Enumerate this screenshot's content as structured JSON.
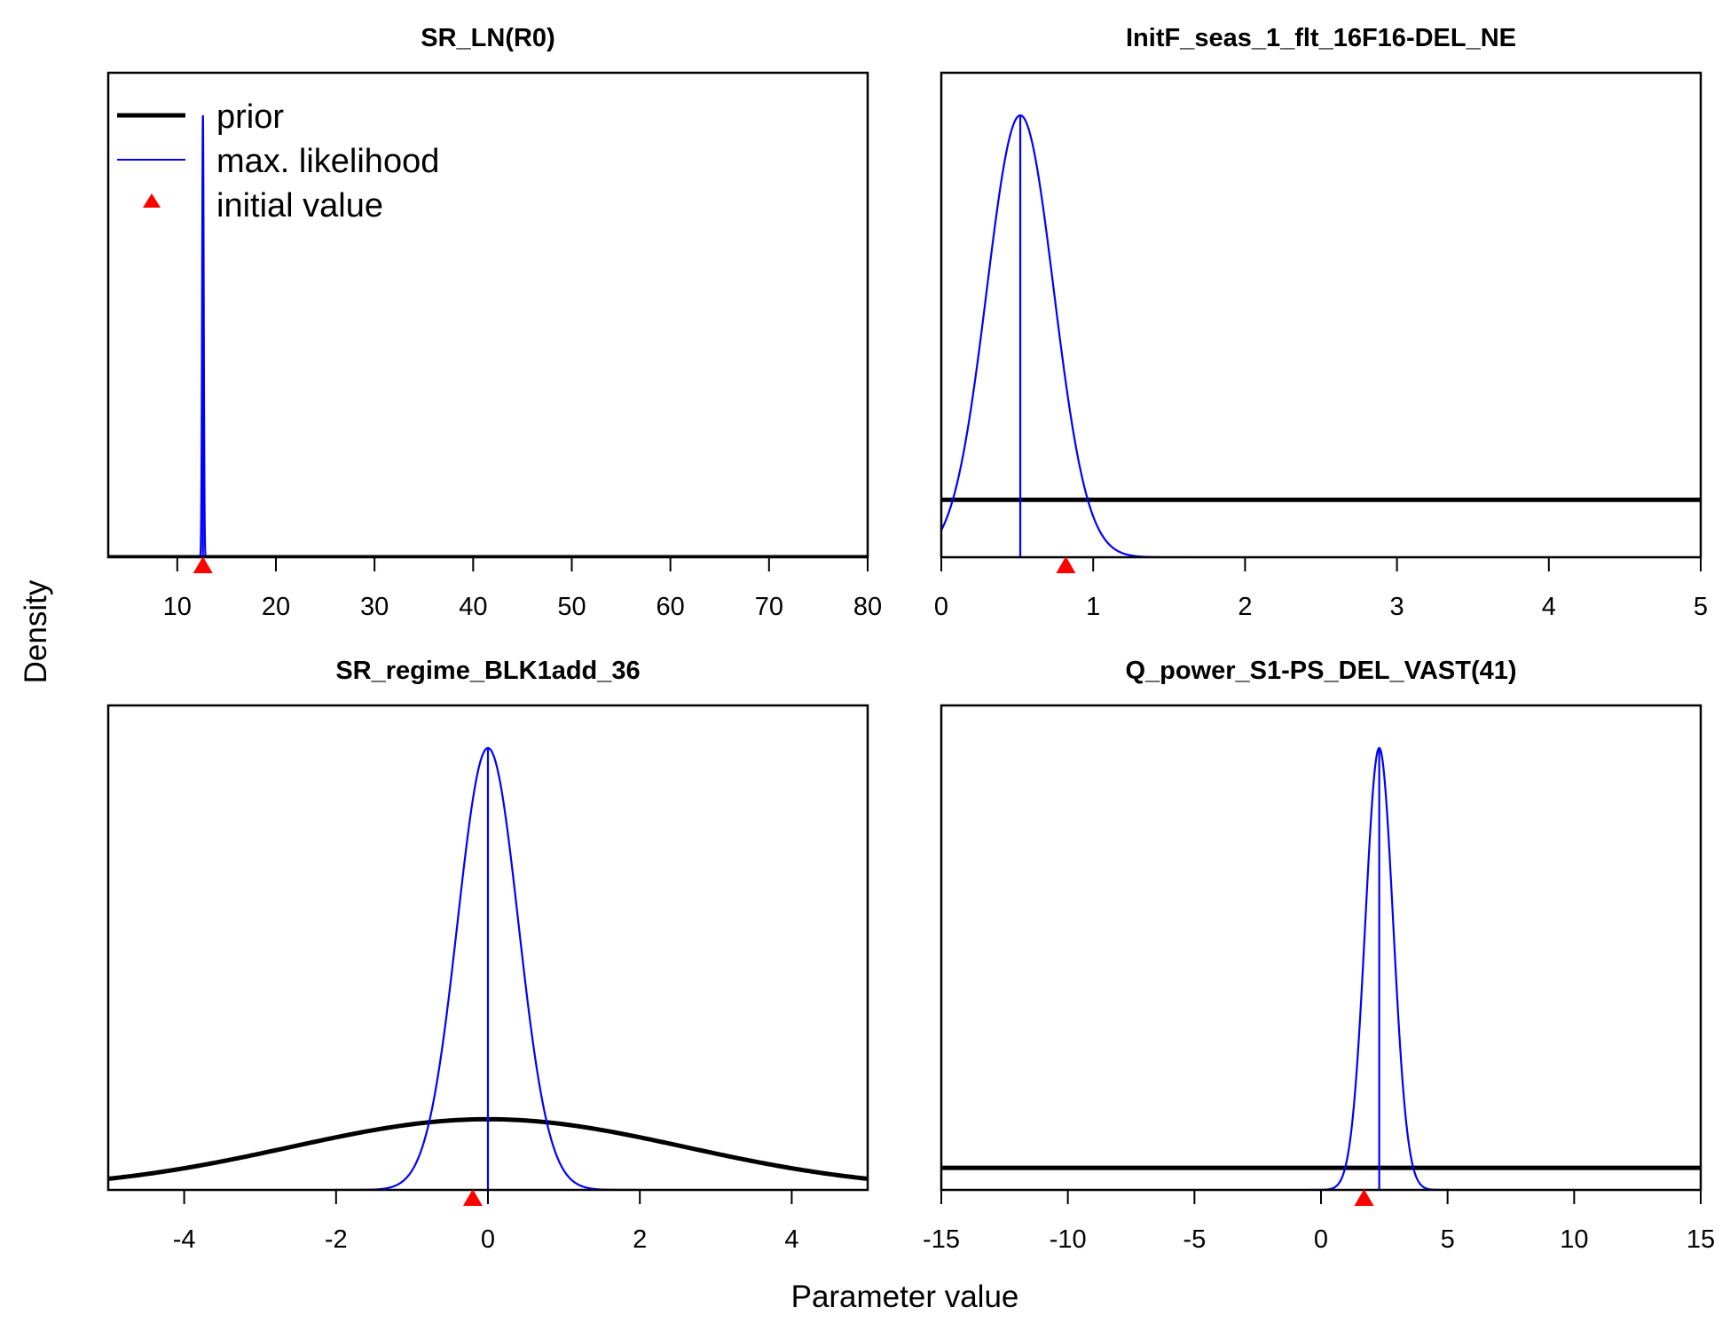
{
  "figure": {
    "ylabel": "Density",
    "xlabel": "Parameter value",
    "legend": {
      "position": "top-left",
      "panel": 0,
      "prior": "prior",
      "ml": "max. likelihood",
      "init": "initial value"
    },
    "colors": {
      "prior": "#000000",
      "max_likelihood": "#0000ff",
      "initial_value": "#ff0000"
    }
  },
  "chart_data": [
    {
      "type": "line",
      "title": "SR_LN(R0)",
      "xlim": [
        3,
        80
      ],
      "xticks": [
        10,
        20,
        30,
        40,
        50,
        60,
        70,
        80
      ],
      "grid": false,
      "series": [
        {
          "kind": "prior",
          "shape": "uniform",
          "density": 0.0
        },
        {
          "kind": "max_likelihood",
          "shape": "normal",
          "mean": 12.6,
          "sd": 0.08
        },
        {
          "kind": "initial_value",
          "x": 12.6
        }
      ]
    },
    {
      "type": "line",
      "title": "InitF_seas_1_flt_16F16-DEL_NE",
      "xlim": [
        0,
        5
      ],
      "xticks": [
        0,
        1,
        2,
        3,
        4,
        5
      ],
      "grid": false,
      "series": [
        {
          "kind": "prior",
          "shape": "uniform",
          "density": 0.13
        },
        {
          "kind": "max_likelihood",
          "shape": "normal",
          "mean": 0.52,
          "sd": 0.22
        },
        {
          "kind": "initial_value",
          "x": 0.82
        }
      ]
    },
    {
      "type": "line",
      "title": "SR_regime_BLK1add_36",
      "xlim": [
        -5,
        5
      ],
      "xticks": [
        -4,
        -2,
        0,
        2,
        4
      ],
      "grid": false,
      "series": [
        {
          "kind": "prior",
          "shape": "normal",
          "mean": 0,
          "sd": 2.6,
          "relative_height": 0.16
        },
        {
          "kind": "max_likelihood",
          "shape": "normal",
          "mean": 0,
          "sd": 0.4
        },
        {
          "kind": "initial_value",
          "x": -0.2
        }
      ]
    },
    {
      "type": "line",
      "title": "Q_power_S1-PS_DEL_VAST(41)",
      "xlim": [
        -15,
        15
      ],
      "xticks": [
        -15,
        -10,
        -5,
        0,
        5,
        10,
        15
      ],
      "grid": false,
      "series": [
        {
          "kind": "prior",
          "shape": "uniform",
          "density": 0.05
        },
        {
          "kind": "max_likelihood",
          "shape": "normal",
          "mean": 2.3,
          "sd": 0.55
        },
        {
          "kind": "initial_value",
          "x": 1.7
        }
      ]
    }
  ]
}
